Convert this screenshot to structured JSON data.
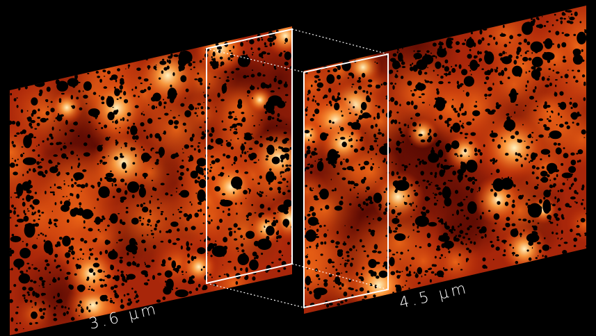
{
  "labels": {
    "left": "3.6 μm",
    "right": "4.5 μm"
  }
}
